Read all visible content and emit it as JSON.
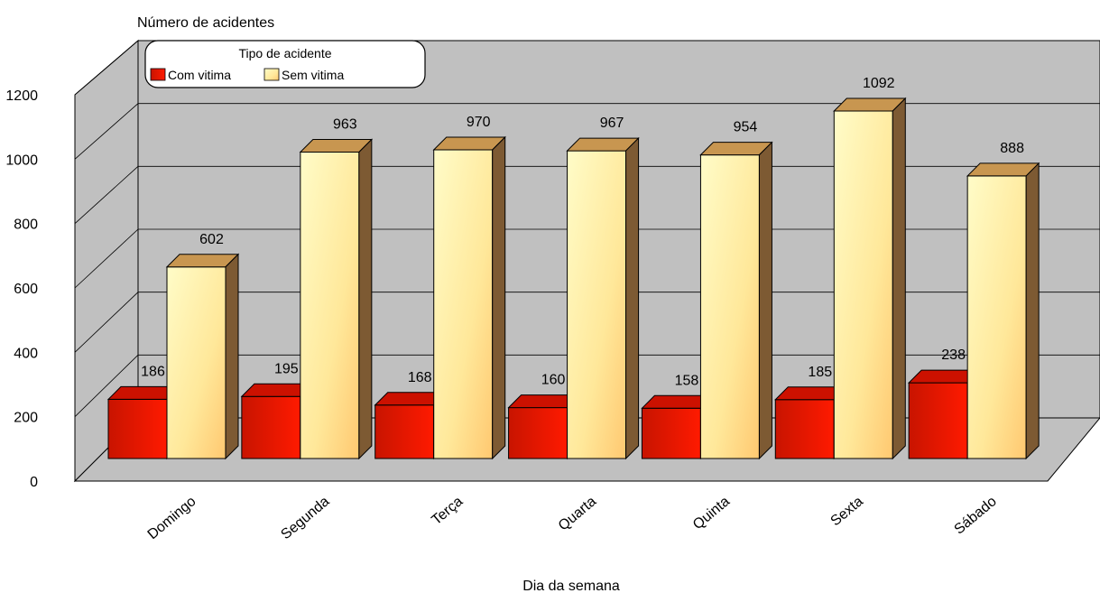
{
  "chart_data": {
    "type": "bar",
    "ylabel": "Número de acidentes",
    "xlabel": "Dia da semana",
    "categories": [
      "Domingo",
      "Segunda",
      "Terça",
      "Quarta",
      "Quinta",
      "Sexta",
      "Sábado"
    ],
    "series": [
      {
        "name": "Com vitima",
        "values": [
          186,
          195,
          168,
          160,
          158,
          185,
          238
        ]
      },
      {
        "name": "Sem vitima",
        "values": [
          602,
          963,
          970,
          967,
          954,
          1092,
          888
        ]
      }
    ],
    "ylim": [
      0,
      1200
    ],
    "yticks": [
      0,
      200,
      400,
      600,
      800,
      1000,
      1200
    ],
    "legend": {
      "title": "Tipo de acidente",
      "placement": "top-left"
    },
    "grid": true,
    "three_d": true,
    "colors": {
      "Com vitima": "#dd1100",
      "Sem vitima": "#ffefa0",
      "wall": "#c0c0c0",
      "side_yellow": "#7d5a33",
      "side_red": "#880000"
    }
  }
}
